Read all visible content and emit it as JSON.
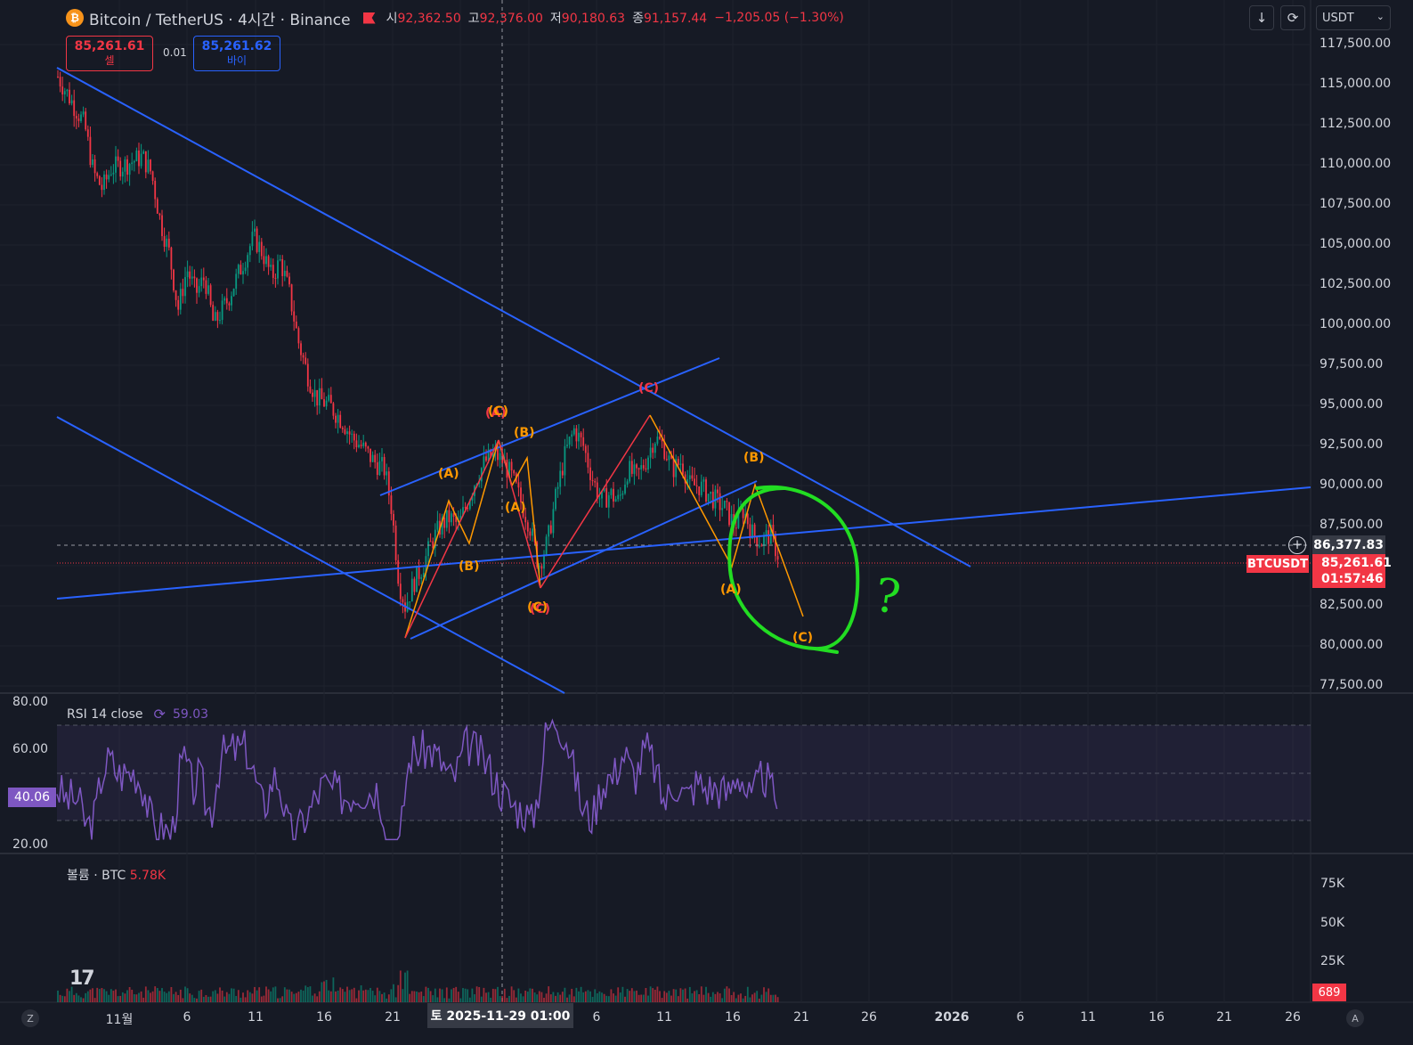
{
  "header": {
    "symbol_title": "Bitcoin / TetherUS · 4시간 · Binance",
    "open_label": "시",
    "open_value": "92,362.50",
    "high_label": "고",
    "high_value": "92,376.00",
    "low_label": "저",
    "low_value": "90,180.63",
    "close_label": "종",
    "close_value": "91,157.44",
    "change": "−1,205.05 (−1.30%)",
    "currency": "USDT"
  },
  "trade": {
    "sell_price": "85,261.61",
    "sell_label": "셀",
    "buy_price": "85,261.62",
    "buy_label": "바이",
    "spread": "0.01"
  },
  "price_axis": {
    "labels": [
      "117,500.00",
      "115,000.00",
      "112,500.00",
      "110,000.00",
      "107,500.00",
      "105,000.00",
      "102,500.00",
      "100,000.00",
      "97,500.00",
      "95,000.00",
      "92,500.00",
      "90,000.00",
      "87,500.00",
      "82,500.00",
      "80,000.00",
      "77,500.00"
    ],
    "crosshair_price": "86,377.83",
    "symbol_tag": "BTCUSDT",
    "last_price": "85,261.61",
    "countdown": "01:57:46"
  },
  "wave_labels": {
    "a": "(A)",
    "b": "(B)",
    "c": "(C)"
  },
  "annotation": {
    "question_mark": "?"
  },
  "rsi": {
    "legend": "RSI 14 close",
    "value": "59.03",
    "axis_labels": [
      "80.00",
      "60.00",
      "20.00"
    ],
    "current": "40.06"
  },
  "volume": {
    "legend": "볼륨 · BTC",
    "value": "5.78K",
    "axis_labels": [
      "75K",
      "50K",
      "25K"
    ],
    "current": "689"
  },
  "time_axis": {
    "labels": [
      "11월",
      "6",
      "11",
      "16",
      "21",
      "6",
      "11",
      "16",
      "21",
      "26",
      "2026",
      "6",
      "11",
      "16",
      "21",
      "26"
    ],
    "crosshair_date": "토 2025-11-29   01:00"
  },
  "colors": {
    "background": "#161a25",
    "up": "#089981",
    "down": "#f23645",
    "trendline": "#2962ff",
    "wave_orange": "#ff9800",
    "wave_red": "#f23645",
    "rsi": "#7e57c2",
    "marker_green": "#22dd22"
  },
  "icons": {
    "download": "download-icon",
    "refresh": "refresh-icon",
    "add": "plus-circle-icon"
  }
}
